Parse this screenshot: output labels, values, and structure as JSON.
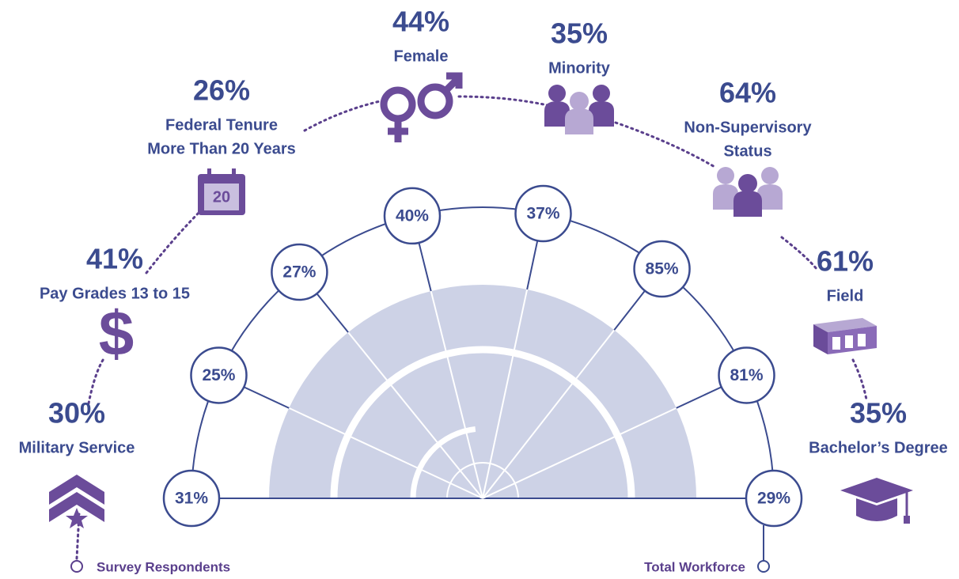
{
  "survey_respondents": {
    "label": "Survey Respondents",
    "items": [
      {
        "value": "30%",
        "lines": [
          "Military Service"
        ]
      },
      {
        "value": "41%",
        "lines": [
          "Pay Grades 13 to 15"
        ]
      },
      {
        "value": "26%",
        "lines": [
          "Federal Tenure",
          "More Than 20 Years"
        ]
      },
      {
        "value": "44%",
        "lines": [
          "Female"
        ]
      },
      {
        "value": "35%",
        "lines": [
          "Minority"
        ]
      },
      {
        "value": "64%",
        "lines": [
          "Non-Supervisory",
          "Status"
        ]
      },
      {
        "value": "61%",
        "lines": [
          "Field"
        ]
      },
      {
        "value": "35%",
        "lines": [
          "Bachelor’s Degree"
        ]
      }
    ]
  },
  "total_workforce": {
    "label": "Total Workforce",
    "values": [
      "31%",
      "25%",
      "27%",
      "40%",
      "37%",
      "85%",
      "81%",
      "29%"
    ]
  },
  "calendar_icon": "20"
}
